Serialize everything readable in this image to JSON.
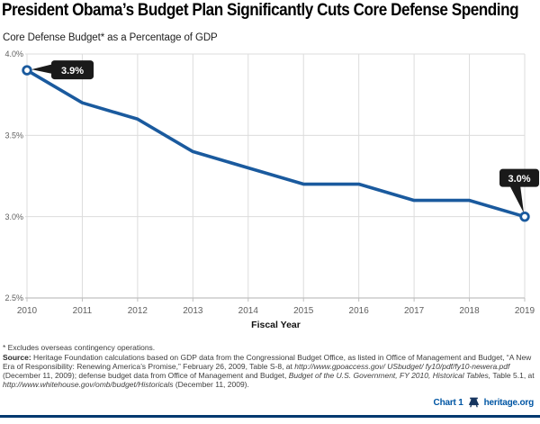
{
  "header": {
    "title": "President Obama’s Budget Plan Significantly Cuts Core Defense Spending",
    "subtitle": "Core Defense Budget* as a Percentage of GDP"
  },
  "chart_data": {
    "type": "line",
    "x": [
      2010,
      2011,
      2012,
      2013,
      2014,
      2015,
      2016,
      2017,
      2018,
      2019
    ],
    "values": [
      3.9,
      3.7,
      3.6,
      3.4,
      3.3,
      3.2,
      3.2,
      3.1,
      3.1,
      3.0
    ],
    "xlabel": "Fiscal Year",
    "ylim": [
      2.5,
      4.0
    ],
    "yticks": [
      2.5,
      3.0,
      3.5,
      4.0
    ],
    "ytick_labels": [
      "2.5%",
      "3.0%",
      "3.5%",
      "4.0%"
    ],
    "xtick_labels": [
      "2010",
      "2011",
      "2012",
      "2013",
      "2014",
      "2015",
      "2016",
      "2017",
      "2018",
      "2019"
    ],
    "grid": true,
    "legend": "none",
    "line_color": "#1a5a9e",
    "grid_color": "#dcdcdc",
    "axis_color": "#c0c0c0",
    "tick_label_color": "#5f5f5f",
    "callout_bg": "#1a1a1a",
    "callout_text_color": "#ffffff",
    "callouts": [
      {
        "year": 2010,
        "label": "3.9%",
        "position": "right"
      },
      {
        "year": 2019,
        "label": "3.0%",
        "position": "above"
      }
    ]
  },
  "footnote": "* Excludes overseas contingency operations.",
  "source": {
    "segments": [
      {
        "t": "Source: ",
        "s": "b"
      },
      {
        "t": "Heritage Foundation calculations based on GDP data from the Congressional Budget Office, as listed in Office of Management and Budget, “A New Era of Responsibility: Renewing America’s Promise,” February 26, 2009, Table S-8, at ",
        "s": ""
      },
      {
        "t": "http://www.gpoaccess.gov/ USbudget/ fy10/pdf/fy10-newera.pdf",
        "s": "i"
      },
      {
        "t": " (December 11, 2009); defense budget data from Office of Management and Budget, ",
        "s": ""
      },
      {
        "t": "Budget of the U.S. Government, FY 2010, Historical Tables,",
        "s": "i"
      },
      {
        "t": " Table 5.1, at ",
        "s": ""
      },
      {
        "t": "http://www.whitehouse.gov/omb/budget/Historicals",
        "s": "i"
      },
      {
        "t": " (December 11, 2009).",
        "s": ""
      }
    ]
  },
  "footer": {
    "chart_number": "Chart 1",
    "site": "heritage.org",
    "accent_color": "#0056a4",
    "rule_color": "#00396f"
  }
}
